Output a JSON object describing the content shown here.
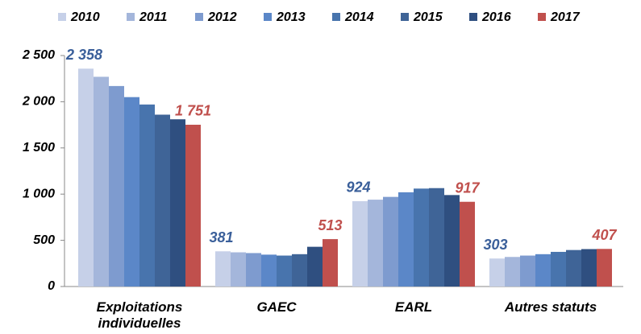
{
  "chart_data": {
    "type": "bar",
    "categories": [
      "Exploitations individuelles",
      "GAEC",
      "EARL",
      "Autres statuts"
    ],
    "series": [
      {
        "name": "2010",
        "color": "#c6d0e8",
        "values": [
          2358,
          381,
          924,
          303
        ],
        "value_labels": [
          "2 358",
          "381",
          "924",
          "303"
        ],
        "label_color": "#3a5f9a"
      },
      {
        "name": "2011",
        "color": "#a4b6db",
        "values": [
          2270,
          370,
          940,
          320
        ]
      },
      {
        "name": "2012",
        "color": "#7e9bcf",
        "values": [
          2170,
          362,
          970,
          335
        ]
      },
      {
        "name": "2013",
        "color": "#5b87c8",
        "values": [
          2050,
          345,
          1020,
          350
        ]
      },
      {
        "name": "2014",
        "color": "#4874ad",
        "values": [
          1970,
          335,
          1060,
          375
        ]
      },
      {
        "name": "2015",
        "color": "#3f6497",
        "values": [
          1860,
          350,
          1065,
          395
        ]
      },
      {
        "name": "2016",
        "color": "#2f4f80",
        "values": [
          1810,
          430,
          990,
          405
        ]
      },
      {
        "name": "2017",
        "color": "#c0504d",
        "values": [
          1751,
          513,
          917,
          407
        ],
        "value_labels": [
          "1 751",
          "513",
          "917",
          "407"
        ],
        "label_color": "#c0504d"
      }
    ],
    "ylim": [
      0,
      2500
    ],
    "yticks": [
      0,
      500,
      {
        "value": 1000,
        "label": "1 000"
      },
      {
        "value": 1500,
        "label": "1 500"
      },
      {
        "value": 2000,
        "label": "2 000"
      },
      {
        "value": 2500,
        "label": "2 500"
      }
    ],
    "grid": false,
    "legend": "top"
  }
}
